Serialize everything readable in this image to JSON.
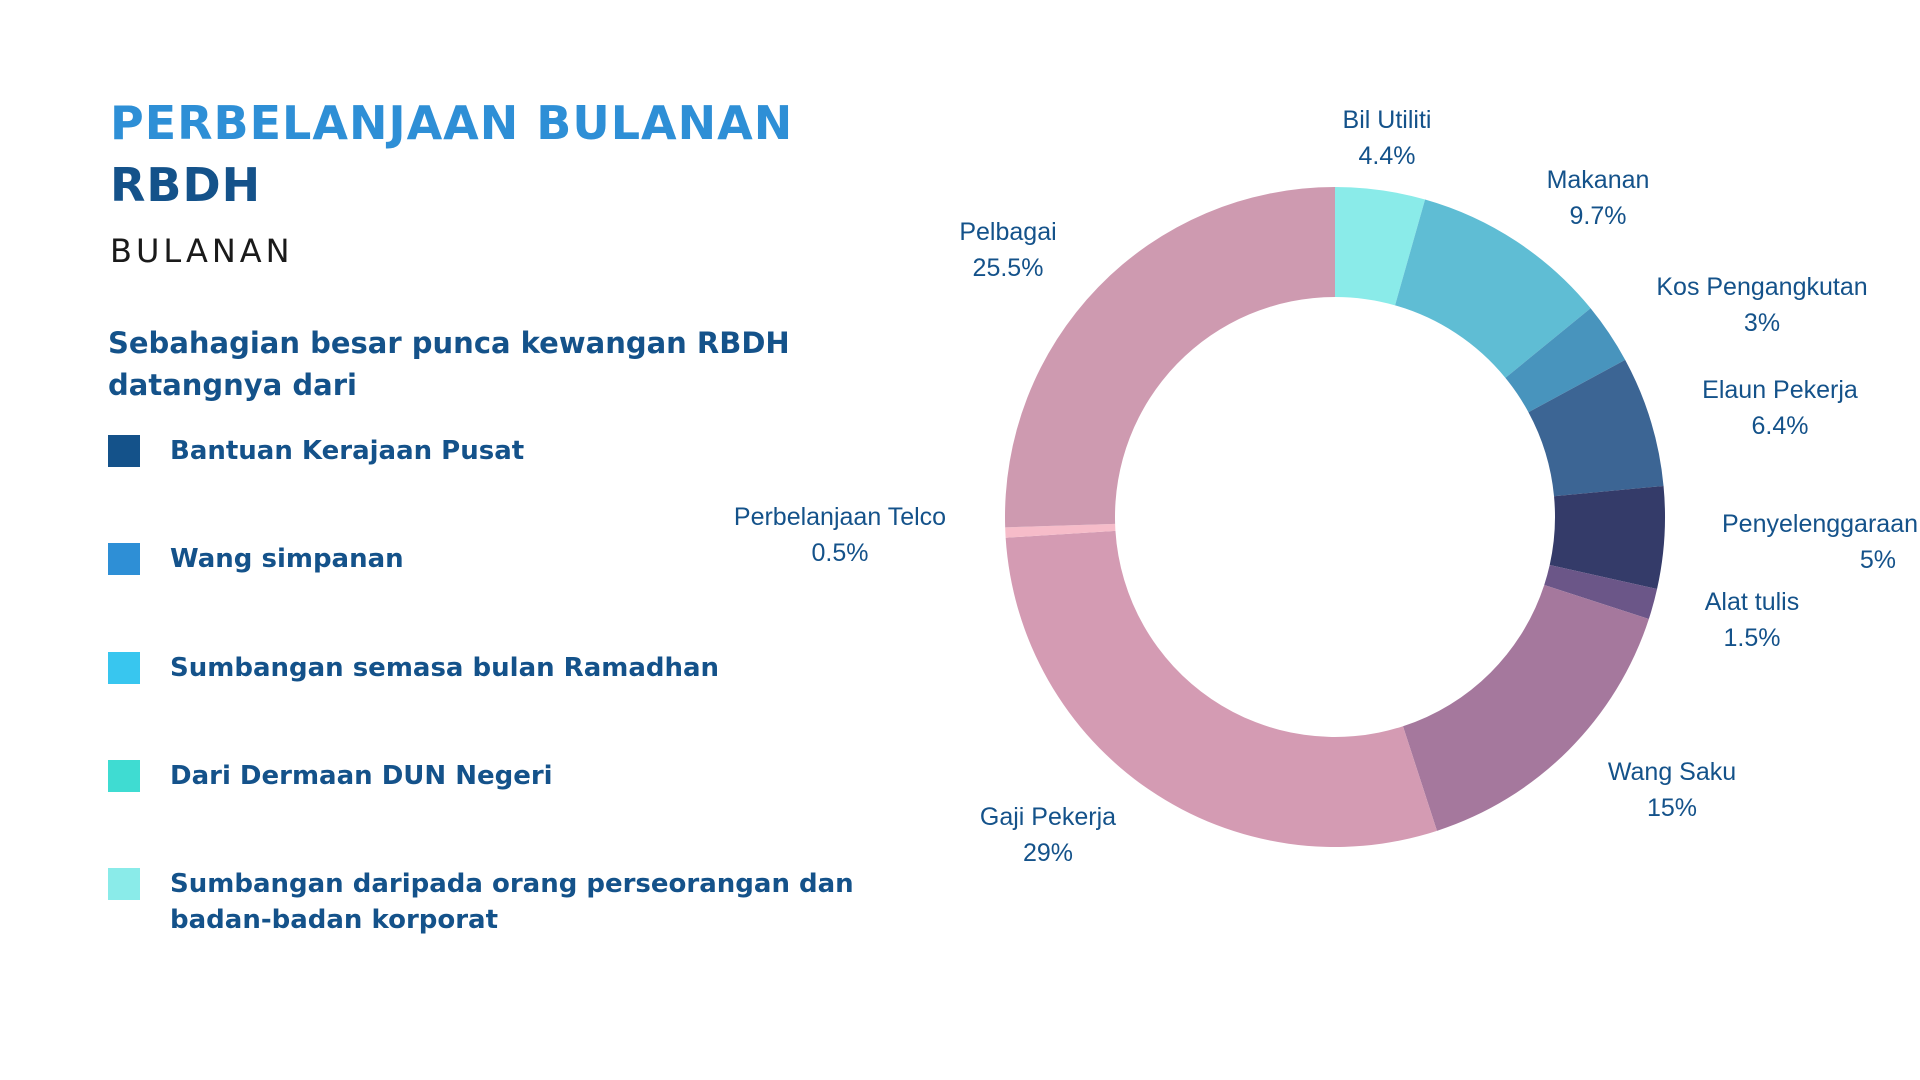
{
  "header": {
    "title_line1": "PERBELANJAAN BULANAN",
    "title_line2": "RBDH",
    "subtitle": "BULANAN"
  },
  "intro": "Sebahagian besar punca kewangan RBDH datangnya dari",
  "legend": [
    {
      "label": "Bantuan Kerajaan Pusat",
      "color": "#14528a"
    },
    {
      "label": "Wang simpanan",
      "color": "#2e8fd6"
    },
    {
      "label": "Sumbangan semasa bulan Ramadhan",
      "color": "#38c6ef"
    },
    {
      "label": "Dari Dermaan DUN Negeri",
      "color": "#3fdcd2"
    },
    {
      "label": "Sumbangan daripada orang perseorangan dan\n badan-badan korporat",
      "color": "#8aebe9"
    }
  ],
  "chart_data": {
    "type": "pie",
    "donut": true,
    "slices": [
      {
        "label": "Bil Utiliti",
        "value": 4.4,
        "value_label": "4.4%",
        "color": "#8aebe9"
      },
      {
        "label": "Makanan",
        "value": 9.7,
        "value_label": "9.7%",
        "color": "#5fbdd4"
      },
      {
        "label": "Kos Pengangkutan",
        "value": 3,
        "value_label": "3%",
        "color": "#4894bd"
      },
      {
        "label": "Elaun Pekerja",
        "value": 6.4,
        "value_label": "6.4%",
        "color": "#3c6594"
      },
      {
        "label": "Penyelenggaraan",
        "value": 5,
        "value_label": "5%",
        "color": "#343b69"
      },
      {
        "label": "Alat tulis",
        "value": 1.5,
        "value_label": "1.5%",
        "color": "#6b5688"
      },
      {
        "label": "Wang Saku",
        "value": 15,
        "value_label": "15%",
        "color": "#a5789d"
      },
      {
        "label": "Gaji Pekerja",
        "value": 29,
        "value_label": "29%",
        "color": "#d49bb3"
      },
      {
        "label": "Perbelanjaan Telco",
        "value": 0.5,
        "value_label": "0.5%",
        "color": "#f6bcc9"
      },
      {
        "label": "Pelbagai",
        "value": 25.5,
        "value_label": "25.5%",
        "color": "#ce9ab0"
      }
    ]
  }
}
